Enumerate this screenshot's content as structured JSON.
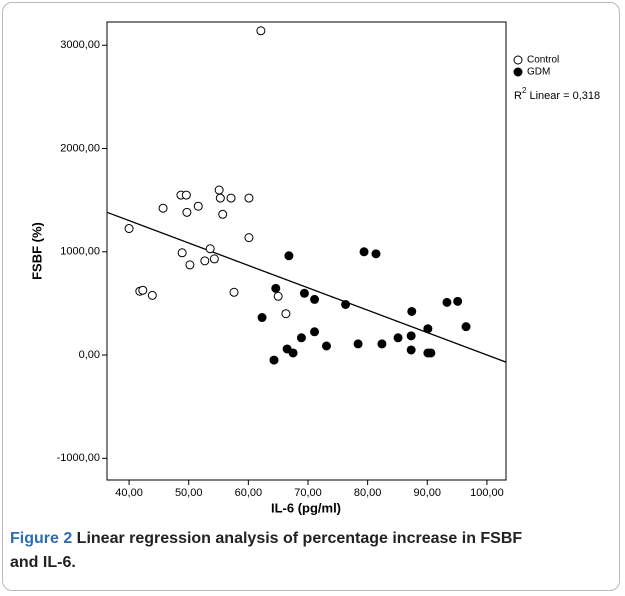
{
  "chart_data": {
    "type": "scatter",
    "xlabel": "IL-6 (pg/ml)",
    "ylabel": "FSBF (%)",
    "xlim": [
      36.3,
      103.2
    ],
    "ylim": [
      -1210,
      3225
    ],
    "xticks": [
      {
        "value": 40,
        "label": "40,00"
      },
      {
        "value": 50,
        "label": "50,00"
      },
      {
        "value": 60,
        "label": "60,00"
      },
      {
        "value": 70,
        "label": "70,00"
      },
      {
        "value": 80,
        "label": "80,00"
      },
      {
        "value": 90,
        "label": "90,00"
      },
      {
        "value": 100,
        "label": "100,00"
      }
    ],
    "yticks": [
      {
        "value": -1000,
        "label": "-1000,00"
      },
      {
        "value": 0,
        "label": "0,00"
      },
      {
        "value": 1000,
        "label": "1000,00"
      },
      {
        "value": 2000,
        "label": "2000,00"
      },
      {
        "value": 3000,
        "label": "3000,00"
      }
    ],
    "series": [
      {
        "name": "Control",
        "color": "#000000",
        "filled": false,
        "x": [
          40.0,
          41.8,
          42.3,
          43.9,
          45.7,
          48.7,
          49.6,
          48.9,
          49.7,
          50.2,
          51.6,
          52.7,
          53.6,
          54.3,
          55.1,
          55.3,
          55.7,
          57.1,
          57.6,
          60.1,
          60.1,
          62.1,
          65.0,
          66.3
        ],
        "values": [
          1225,
          618,
          627,
          578,
          1422,
          1549,
          1549,
          990,
          1382,
          873,
          1441,
          912,
          1029,
          931,
          1598,
          1520,
          1363,
          1520,
          608,
          1520,
          1137,
          3140,
          569,
          400
        ]
      },
      {
        "name": "GDM",
        "color": "#000000",
        "filled": true,
        "x": [
          64.6,
          62.3,
          66.8,
          66.5,
          67.5,
          64.3,
          68.9,
          69.4,
          71.1,
          71.1,
          73.1,
          76.3,
          79.4,
          81.4,
          78.4,
          82.4,
          85.1,
          87.4,
          87.3,
          87.3,
          90.1,
          90.1,
          90.6,
          93.3,
          95.1,
          96.5
        ],
        "values": [
          646,
          363,
          961,
          59,
          20,
          -49,
          167,
          598,
          539,
          225,
          88,
          490,
          1000,
          980,
          108,
          108,
          167,
          422,
          186,
          49,
          255,
          20,
          20,
          510,
          520,
          275
        ]
      }
    ],
    "fit": {
      "x": [
        36.3,
        103.2
      ],
      "y": [
        1382,
        -69
      ],
      "color": "#000000"
    },
    "r2_label": {
      "base": "R",
      "sup": "2",
      "text": " Linear = 0,318"
    }
  },
  "caption": {
    "label": "Figure 2",
    "text": " Linear regression analysis of percentage increase in FSBF and IL-6."
  }
}
